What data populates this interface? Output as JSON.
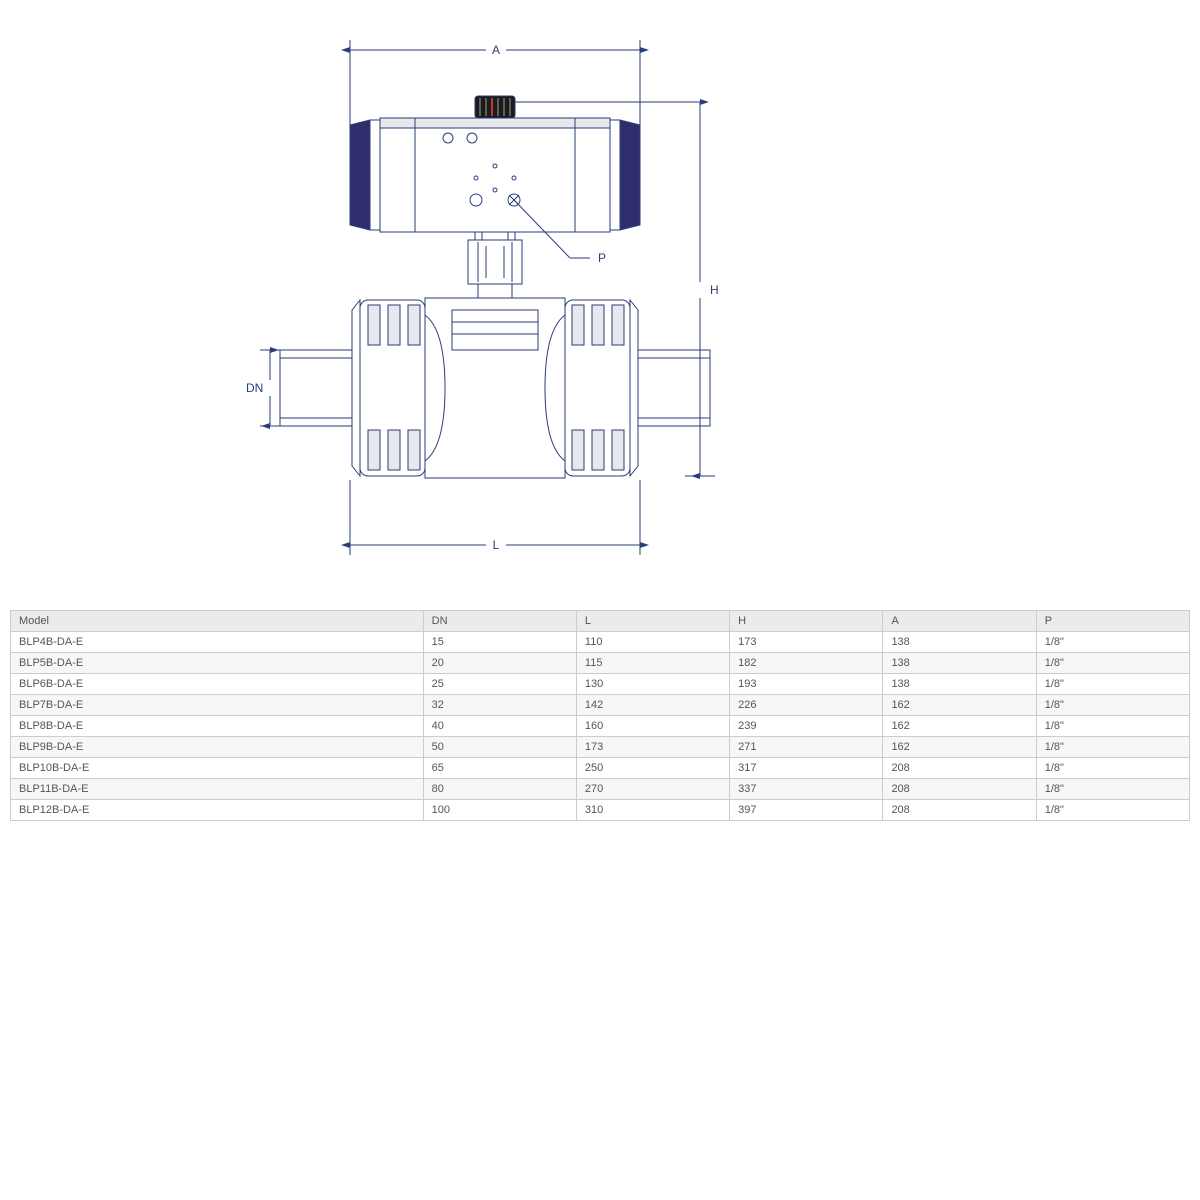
{
  "diagram": {
    "labels": {
      "A": "A",
      "H": "H",
      "L": "L",
      "DN": "DN",
      "P": "P"
    },
    "colors": {
      "dimLine": "#2a3d7a",
      "drawLine": "#2a3d7a",
      "actuatorCap": "#2e2e6d",
      "bodyFill": "#ffffff",
      "bodyShade": "#e8e8ec"
    }
  },
  "table": {
    "columns": [
      "Model",
      "DN",
      "L",
      "H",
      "A",
      "P"
    ],
    "rows": [
      [
        "BLP4B-DA-E",
        "15",
        "110",
        "173",
        "138",
        "1/8\""
      ],
      [
        "BLP5B-DA-E",
        "20",
        "115",
        "182",
        "138",
        "1/8\""
      ],
      [
        "BLP6B-DA-E",
        "25",
        "130",
        "193",
        "138",
        "1/8\""
      ],
      [
        "BLP7B-DA-E",
        "32",
        "142",
        "226",
        "162",
        "1/8\""
      ],
      [
        "BLP8B-DA-E",
        "40",
        "160",
        "239",
        "162",
        "1/8\""
      ],
      [
        "BLP9B-DA-E",
        "50",
        "173",
        "271",
        "162",
        "1/8\""
      ],
      [
        "BLP10B-DA-E",
        "65",
        "250",
        "317",
        "208",
        "1/8\""
      ],
      [
        "BLP11B-DA-E",
        "80",
        "270",
        "337",
        "208",
        "1/8\""
      ],
      [
        "BLP12B-DA-E",
        "100",
        "310",
        "397",
        "208",
        "1/8\""
      ]
    ]
  }
}
